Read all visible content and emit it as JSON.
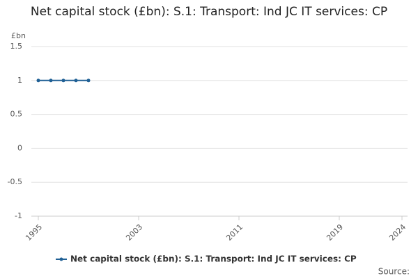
{
  "chart_data": {
    "type": "line",
    "title": "Net capital stock (£bn): S.1: Transport: Ind JC IT services: CP",
    "y_label": "£bn",
    "x": [
      1995,
      1996,
      1997,
      1998,
      1999
    ],
    "series": [
      {
        "name": "Net capital stock (£bn): S.1: Transport: Ind JC IT services: CP",
        "color": "#206095",
        "values": [
          1,
          1,
          1,
          1,
          1
        ]
      }
    ],
    "xlim": [
      1995,
      2024
    ],
    "xticks": [
      1995,
      2003,
      2011,
      2019,
      2024
    ],
    "ylim": [
      -1,
      1.5
    ],
    "yticks": [
      -1,
      -0.5,
      0,
      0.5,
      1,
      1.5
    ],
    "grid": true,
    "legend": "bottom",
    "source": "Source:"
  }
}
